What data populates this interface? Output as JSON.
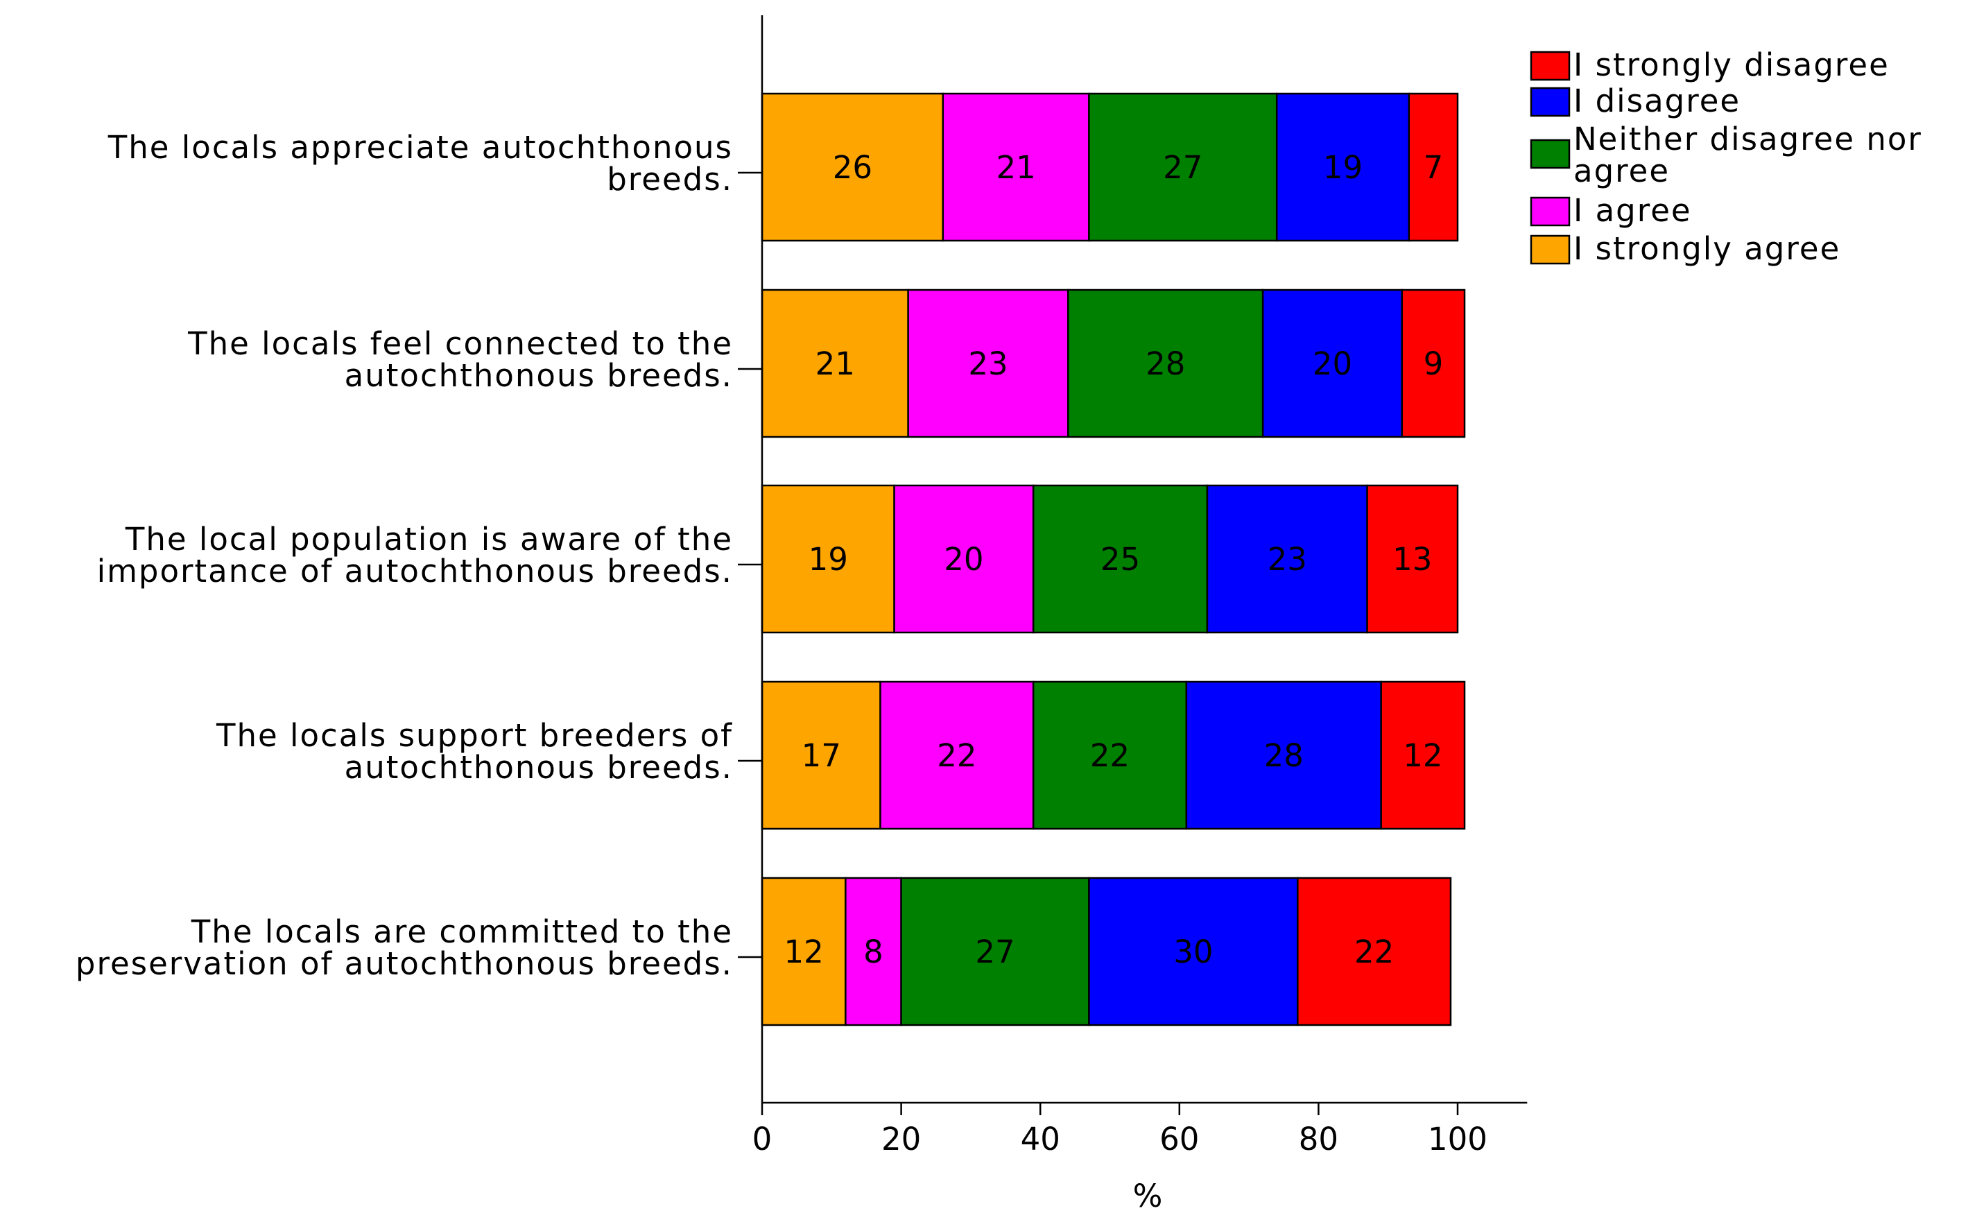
{
  "chart_data": {
    "type": "bar",
    "orientation": "horizontal",
    "stacked": true,
    "categories": [
      [
        "The locals appreciate autochthonous",
        "breeds."
      ],
      [
        "The locals feel connected to the",
        "autochthonous breeds."
      ],
      [
        "The local population is aware of the",
        "importance of autochthonous breeds."
      ],
      [
        "The locals support breeders of",
        "autochthonous breeds."
      ],
      [
        "The locals are committed to the",
        "preservation of autochthonous breeds."
      ]
    ],
    "series": [
      {
        "name": "I strongly agree",
        "color": "#FFA500",
        "values": [
          26,
          21,
          19,
          17,
          12
        ]
      },
      {
        "name": "I agree",
        "color": "#FF00FF",
        "values": [
          21,
          23,
          20,
          22,
          8
        ]
      },
      {
        "name": "Neither disagree nor agree",
        "color": "#008000",
        "values": [
          27,
          28,
          25,
          22,
          27
        ]
      },
      {
        "name": "I disagree",
        "color": "#0000FF",
        "values": [
          19,
          20,
          23,
          28,
          30
        ]
      },
      {
        "name": "I strongly disagree",
        "color": "#FF0000",
        "values": [
          7,
          9,
          13,
          12,
          22
        ]
      }
    ],
    "legend": {
      "position": "top-right",
      "entries": [
        {
          "lines": [
            "I strongly disagree"
          ],
          "color": "#FF0000"
        },
        {
          "lines": [
            "I disagree"
          ],
          "color": "#0000FF"
        },
        {
          "lines": [
            "Neither disagree nor",
            "agree"
          ],
          "color": "#008000"
        },
        {
          "lines": [
            "I agree"
          ],
          "color": "#FF00FF"
        },
        {
          "lines": [
            "I strongly agree"
          ],
          "color": "#FFA500"
        }
      ]
    },
    "xlabel": "%",
    "ylabel": "",
    "xlim": [
      0,
      110
    ],
    "xticks": [
      "0",
      "20",
      "40",
      "60",
      "80",
      "100"
    ],
    "grid": false
  }
}
